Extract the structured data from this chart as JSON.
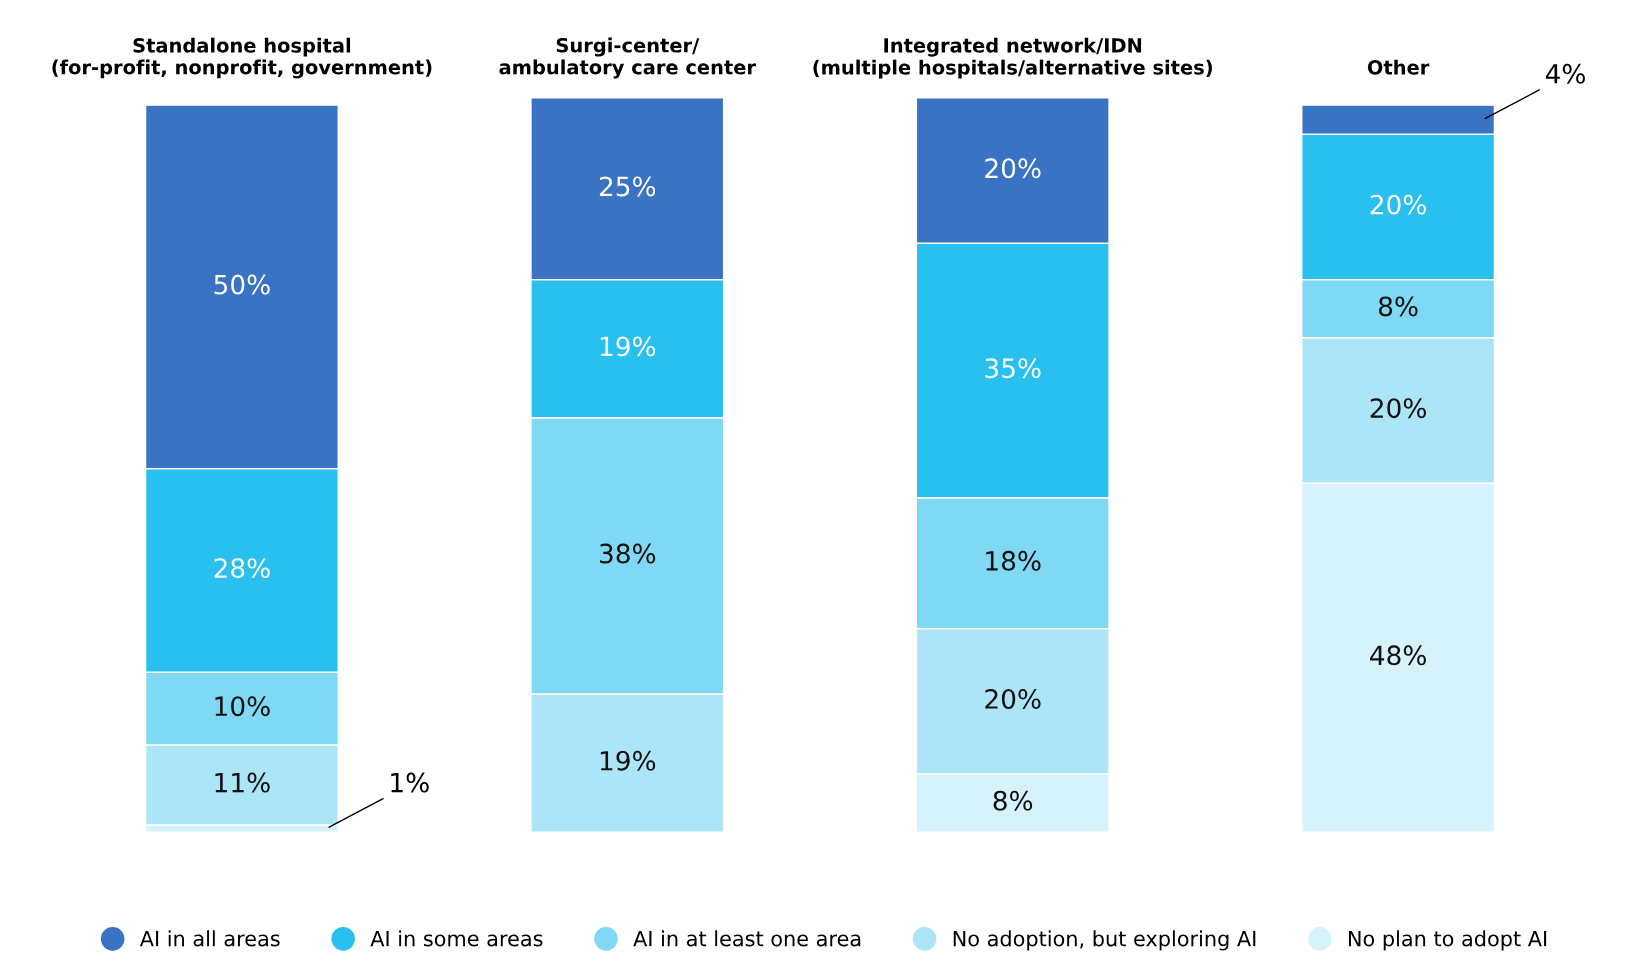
{
  "chart_data": {
    "type": "bar",
    "stacked": true,
    "grid": false,
    "legend": "bottom",
    "categories": [
      "Standalone hospital\n(for-profit, nonprofit, government)",
      "Surgi-center/\nambulatory care center",
      "Integrated network/IDN\n(multiple hospitals/alternative sites)",
      "Other"
    ],
    "series": [
      {
        "name": "No plan to adopt AI",
        "color": "#d6f2fb",
        "values": [
          1,
          null,
          8,
          48
        ],
        "value_labels": [
          "1%",
          null,
          "8%",
          "48%"
        ]
      },
      {
        "name": "No adoption, but exploring AI",
        "color": "#ade5f8",
        "values": [
          11,
          19,
          20,
          20
        ],
        "value_labels": [
          "11%",
          "19%",
          "20%",
          "20%"
        ]
      },
      {
        "name": "AI in at least one area",
        "color": "#7fd9f5",
        "values": [
          10,
          38,
          18,
          8
        ],
        "value_labels": [
          "10%",
          "38%",
          "18%",
          "8%"
        ]
      },
      {
        "name": "AI in some areas",
        "color": "#29c0f0",
        "values": [
          28,
          19,
          35,
          20
        ],
        "value_labels": [
          "28%",
          "19%",
          "35%",
          "20%"
        ]
      },
      {
        "name": "AI in all areas",
        "color": "#3a72c4",
        "values": [
          50,
          25,
          20,
          4
        ],
        "value_labels": [
          "50%",
          "25%",
          "20%",
          "4%"
        ]
      }
    ]
  }
}
